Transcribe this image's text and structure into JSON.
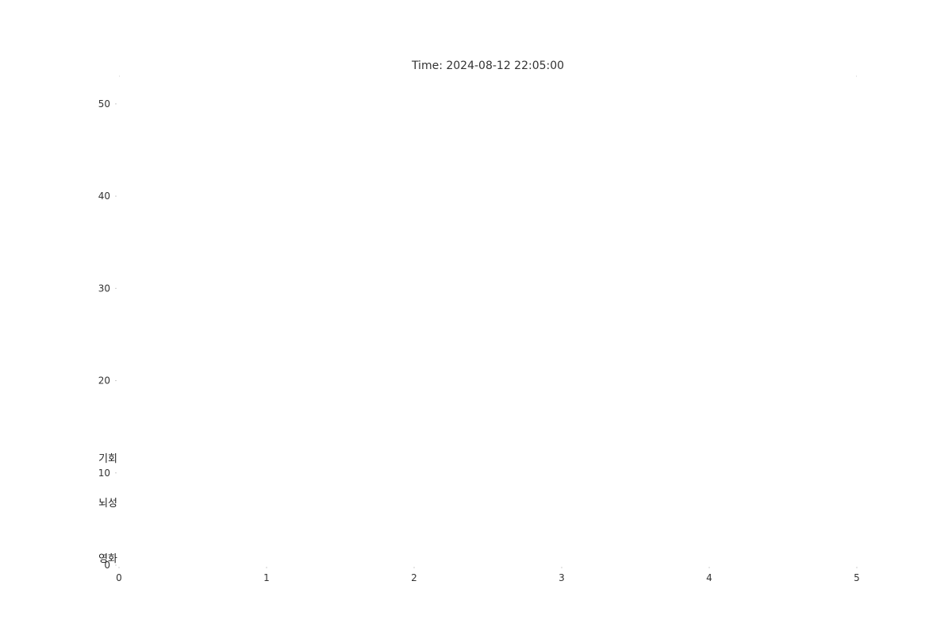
{
  "chart_data": {
    "type": "bar",
    "title": "Time: 2024-08-12 22:05:00",
    "xlabel": "",
    "ylabel": "",
    "xlim": [
      0,
      5
    ],
    "ylim": [
      0,
      53
    ],
    "x_ticks": [
      "0",
      "1",
      "2",
      "3",
      "4",
      "5"
    ],
    "y_ticks": [
      "0",
      "10",
      "20",
      "30",
      "40",
      "50"
    ],
    "orientation": "horizontal",
    "categories": [
      "영화",
      "뇌성",
      "기회"
    ],
    "values": [
      0,
      0,
      0
    ],
    "grid": false,
    "colors": {
      "text": "#333333",
      "tick": "#cccccc"
    }
  }
}
